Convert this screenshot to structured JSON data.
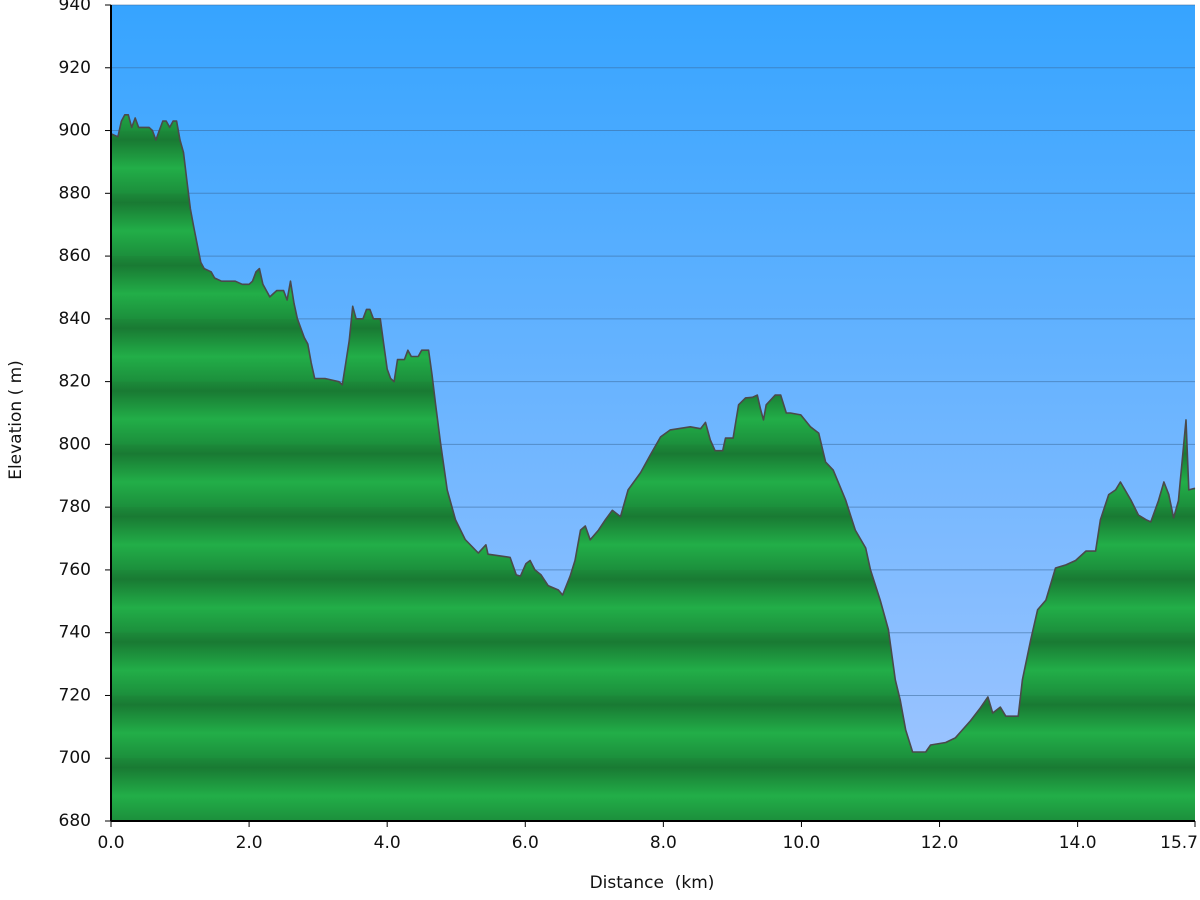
{
  "chart_data": {
    "type": "area",
    "xlabel": "Distance  (km)",
    "ylabel": "Elevation ( m)",
    "color": "#22a845",
    "line_color": "#4a4a4a",
    "grid": true,
    "xlim": [
      0,
      15.7
    ],
    "ylim": [
      680,
      940
    ],
    "xticks": [
      {
        "value": 0,
        "label": "0.0"
      },
      {
        "value": 2,
        "label": "2.0"
      },
      {
        "value": 4,
        "label": "4.0"
      },
      {
        "value": 6,
        "label": "6.0"
      },
      {
        "value": 8,
        "label": "8.0"
      },
      {
        "value": 10,
        "label": "10.0"
      },
      {
        "value": 12,
        "label": "12.0"
      },
      {
        "value": 14,
        "label": "14.0"
      },
      15.7
    ],
    "yticks": [
      680,
      700,
      720,
      740,
      760,
      780,
      800,
      820,
      840,
      860,
      880,
      900,
      920,
      940
    ],
    "x": [
      0,
      0.1,
      0.15,
      0.2,
      0.25,
      0.3,
      0.35,
      0.4,
      0.55,
      0.6,
      0.65,
      0.7,
      0.75,
      0.8,
      0.85,
      0.9,
      0.95,
      1.0,
      1.05,
      1.1,
      1.15,
      1.2,
      1.3,
      1.35,
      1.45,
      1.5,
      1.6,
      1.8,
      1.9,
      2.0,
      2.05,
      2.1,
      2.15,
      2.2,
      2.3,
      2.4,
      2.5,
      2.55,
      2.6,
      2.65,
      2.7,
      2.8,
      2.85,
      2.9,
      2.95,
      3.1,
      3.3,
      3.35,
      3.4,
      3.45,
      3.5,
      3.55,
      3.65,
      3.7,
      3.75,
      3.8,
      3.9,
      3.95,
      4.0,
      4.05,
      4.1,
      4.15,
      4.25,
      4.3,
      4.35,
      4.45,
      4.5,
      4.6,
      4.65,
      4.7,
      4.77,
      4.87,
      4.99,
      5.13,
      5.32,
      5.43,
      5.46,
      5.78,
      5.87,
      5.93,
      6.01,
      6.07,
      6.14,
      6.23,
      6.33,
      6.48,
      6.54,
      6.65,
      6.72,
      6.8,
      6.87,
      6.94,
      7.06,
      7.16,
      7.26,
      7.38,
      7.49,
      7.67,
      7.81,
      7.96,
      8.1,
      8.39,
      8.54,
      8.61,
      8.68,
      8.75,
      8.86,
      8.9,
      9.01,
      9.09,
      9.19,
      9.29,
      9.36,
      9.41,
      9.45,
      9.49,
      9.62,
      9.7,
      9.78,
      9.84,
      9.99,
      10.13,
      10.25,
      10.35,
      10.46,
      10.64,
      10.78,
      10.93,
      11.0,
      11.14,
      11.26,
      11.36,
      11.43,
      11.51,
      11.61,
      11.8,
      11.87,
      12.09,
      12.23,
      12.33,
      12.45,
      12.59,
      12.7,
      12.77,
      12.88,
      12.96,
      13.14,
      13.2,
      13.32,
      13.42,
      13.54,
      13.68,
      13.83,
      13.97,
      14.12,
      14.26,
      14.33,
      14.45,
      14.55,
      14.62,
      14.77,
      14.88,
      14.99,
      15.06,
      15.17,
      15.25,
      15.32,
      15.39,
      15.46,
      15.57,
      15.61,
      15.7
    ],
    "values": [
      899,
      898,
      903,
      905,
      905,
      901,
      904,
      901,
      901,
      900,
      897,
      900,
      903,
      903,
      901,
      903,
      903,
      897,
      893,
      884,
      875,
      869,
      858,
      856,
      855,
      853,
      852,
      852,
      851,
      851,
      852,
      855,
      856,
      851,
      847,
      849,
      849,
      846,
      852,
      845,
      840,
      834,
      832,
      826,
      821,
      821,
      820,
      819,
      826,
      833,
      844,
      840,
      840,
      843,
      843,
      840,
      840,
      832,
      824,
      821,
      820,
      827,
      827,
      830,
      828,
      828,
      830,
      830,
      822,
      813,
      801,
      785.5,
      776,
      769.7,
      765.4,
      768,
      765,
      764,
      758.4,
      758,
      762,
      763,
      760,
      758.4,
      755,
      753.6,
      752,
      758,
      763,
      772.7,
      774,
      769.6,
      772.7,
      776,
      779,
      777,
      785.5,
      791,
      796.6,
      802.4,
      804.6,
      805.6,
      805,
      807,
      801.4,
      798,
      798,
      802,
      802,
      812.6,
      814.8,
      815,
      815.7,
      811,
      807.8,
      812.6,
      815.7,
      815.7,
      810,
      810,
      809.4,
      805.6,
      803.6,
      794.4,
      791.8,
      782.3,
      772.7,
      767,
      760,
      750.4,
      741,
      725,
      718.6,
      709,
      702,
      702,
      704.2,
      705,
      706.5,
      709,
      712,
      716,
      719.5,
      714.4,
      716.3,
      713.4,
      713.4,
      725,
      737.7,
      747.3,
      750.4,
      760.6,
      761.6,
      763,
      766,
      766,
      776,
      784,
      785.5,
      788,
      782.3,
      777.5,
      776,
      775.3,
      782,
      788,
      784,
      776.6,
      782,
      807.8,
      785.5,
      786
    ]
  }
}
